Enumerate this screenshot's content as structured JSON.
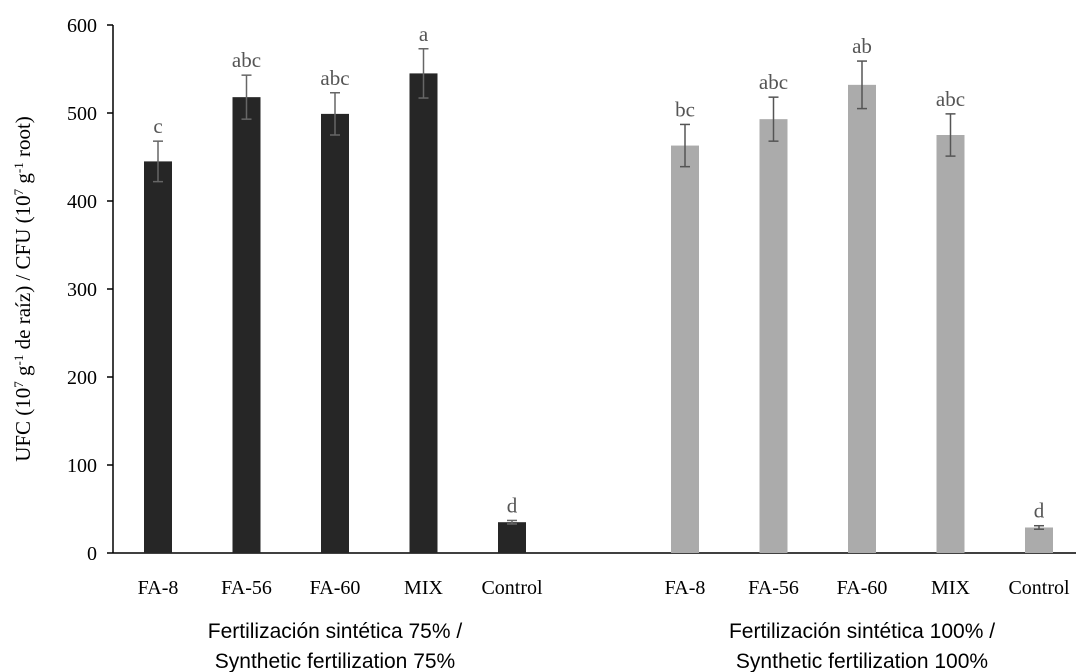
{
  "chart_data": {
    "type": "bar",
    "ylabel_parts": [
      "UFC (10",
      "7",
      " g",
      "-1",
      " de raíz) / CFU (10",
      "7",
      " g",
      "-1",
      " root)"
    ],
    "ylim": [
      0,
      600
    ],
    "yticks": [
      0,
      100,
      200,
      300,
      400,
      500,
      600
    ],
    "grid": false,
    "groups": [
      {
        "label_lines": [
          "Fertilización sintética 75% /",
          "Synthetic fertilization 75%"
        ],
        "color": "#262626",
        "errcolor": "#666666",
        "bars": [
          {
            "category": "FA-8",
            "value": 445,
            "error": 23,
            "letter": "c"
          },
          {
            "category": "FA-56",
            "value": 518,
            "error": 25,
            "letter": "abc"
          },
          {
            "category": "FA-60",
            "value": 499,
            "error": 24,
            "letter": "abc"
          },
          {
            "category": "MIX",
            "value": 545,
            "error": 28,
            "letter": "a"
          },
          {
            "category": "Control",
            "value": 35,
            "error": 2,
            "letter": "d"
          }
        ]
      },
      {
        "label_lines": [
          "Fertilización sintética 100% /",
          "Synthetic fertilization 100%"
        ],
        "color": "#ababab",
        "errcolor": "#555555",
        "bars": [
          {
            "category": "FA-8",
            "value": 463,
            "error": 24,
            "letter": "bc"
          },
          {
            "category": "FA-56",
            "value": 493,
            "error": 25,
            "letter": "abc"
          },
          {
            "category": "FA-60",
            "value": 532,
            "error": 27,
            "letter": "ab"
          },
          {
            "category": "MIX",
            "value": 475,
            "error": 24,
            "letter": "abc"
          },
          {
            "category": "Control",
            "value": 29,
            "error": 2,
            "letter": "d"
          }
        ]
      }
    ]
  }
}
